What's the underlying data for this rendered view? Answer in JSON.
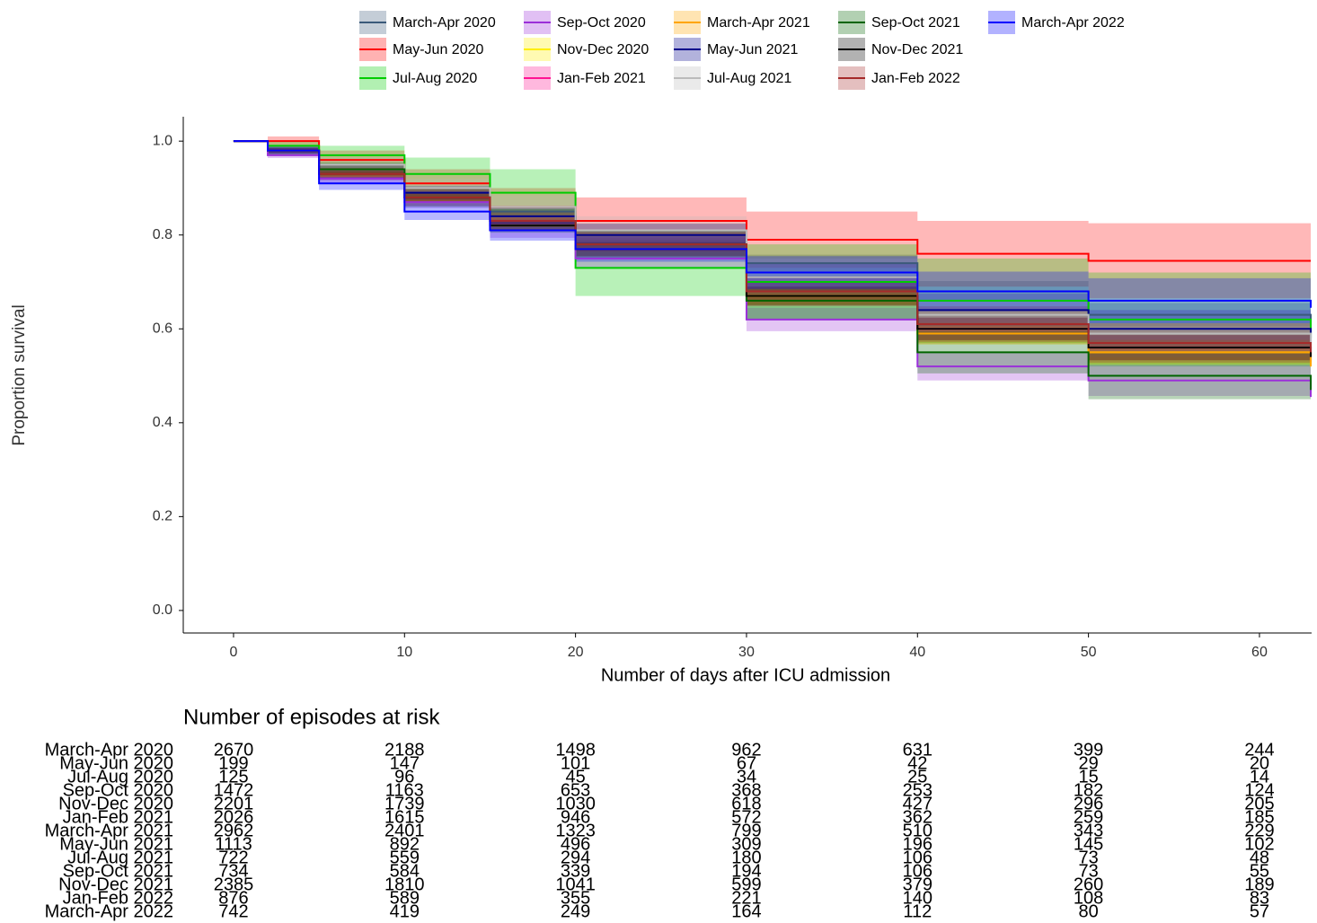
{
  "chart_data": {
    "type": "survival",
    "x_label": "Number of days after ICU admission",
    "y_label": "Proportion survival",
    "risk_table_title": "Number of episodes at risk",
    "xlim": [
      -2.94,
      63.05
    ],
    "ylim": [
      -0.048,
      1.052
    ],
    "xticks": [
      0,
      10,
      20,
      30,
      40,
      50,
      60
    ],
    "yticks": [
      {
        "value": 0,
        "label": "0.0"
      },
      0.2,
      0.4,
      0.6,
      0.8,
      {
        "value": 1,
        "label": "1.0"
      }
    ],
    "x": [
      0,
      2,
      5,
      10,
      15,
      20,
      30,
      40,
      50,
      63
    ],
    "series": [
      {
        "name": "March-Apr 2020",
        "color": "#3b5a7a",
        "values": [
          1,
          0.98,
          0.94,
          0.89,
          0.85,
          0.81,
          0.74,
          0.68,
          0.63,
          0.59
        ],
        "error": [
          0,
          0.005,
          0.008,
          0.01,
          0.012,
          0.014,
          0.018,
          0.022,
          0.025,
          0.03
        ],
        "at_risk": [
          2670,
          2188,
          1498,
          962,
          631,
          399,
          244
        ]
      },
      {
        "name": "May-Jun 2020",
        "color": "#ff0000",
        "values": [
          1,
          1,
          0.96,
          0.91,
          0.86,
          0.83,
          0.79,
          0.76,
          0.745,
          0.745
        ],
        "error": [
          0,
          0.01,
          0.02,
          0.03,
          0.04,
          0.05,
          0.06,
          0.07,
          0.08,
          0.085
        ],
        "at_risk": [
          199,
          147,
          101,
          67,
          42,
          29,
          20
        ]
      },
      {
        "name": "Jul-Aug 2020",
        "color": "#00cc00",
        "values": [
          1,
          0.99,
          0.97,
          0.93,
          0.89,
          0.73,
          0.7,
          0.66,
          0.62,
          0.58
        ],
        "error": [
          0,
          0.01,
          0.02,
          0.035,
          0.05,
          0.06,
          0.08,
          0.09,
          0.1,
          0.11
        ],
        "at_risk": [
          125,
          96,
          45,
          34,
          25,
          15,
          14
        ]
      },
      {
        "name": "Sep-Oct 2020",
        "color": "#9b30d9",
        "values": [
          1,
          0.97,
          0.92,
          0.87,
          0.81,
          0.75,
          0.62,
          0.52,
          0.49,
          0.455
        ],
        "error": [
          0,
          0.006,
          0.01,
          0.013,
          0.016,
          0.02,
          0.025,
          0.03,
          0.033,
          0.035
        ],
        "at_risk": [
          1472,
          1163,
          653,
          368,
          253,
          182,
          124
        ]
      },
      {
        "name": "Nov-Dec 2020",
        "color": "#ffee00",
        "values": [
          1,
          0.98,
          0.93,
          0.88,
          0.82,
          0.77,
          0.67,
          0.59,
          0.55,
          0.52
        ],
        "error": [
          0,
          0.005,
          0.008,
          0.01,
          0.012,
          0.015,
          0.02,
          0.024,
          0.027,
          0.03
        ],
        "at_risk": [
          2201,
          1739,
          1030,
          618,
          427,
          296,
          205
        ]
      },
      {
        "name": "Jan-Feb 2021",
        "color": "#ff1493",
        "values": [
          1,
          0.98,
          0.93,
          0.88,
          0.83,
          0.78,
          0.68,
          0.6,
          0.56,
          0.53
        ],
        "error": [
          0,
          0.005,
          0.008,
          0.01,
          0.012,
          0.015,
          0.02,
          0.024,
          0.027,
          0.03
        ],
        "at_risk": [
          2026,
          1615,
          946,
          572,
          362,
          259,
          185
        ]
      },
      {
        "name": "March-Apr 2021",
        "color": "#ffa500",
        "values": [
          1,
          0.98,
          0.93,
          0.88,
          0.83,
          0.78,
          0.67,
          0.59,
          0.55,
          0.52
        ],
        "error": [
          0,
          0.004,
          0.007,
          0.009,
          0.011,
          0.014,
          0.018,
          0.022,
          0.025,
          0.028
        ],
        "at_risk": [
          2962,
          2401,
          1323,
          799,
          510,
          343,
          229
        ]
      },
      {
        "name": "May-Jun 2021",
        "color": "#00008b",
        "values": [
          1,
          0.98,
          0.94,
          0.89,
          0.84,
          0.8,
          0.71,
          0.64,
          0.6,
          0.57
        ],
        "error": [
          0,
          0.007,
          0.012,
          0.015,
          0.02,
          0.024,
          0.03,
          0.035,
          0.04,
          0.045
        ],
        "at_risk": [
          1113,
          892,
          496,
          309,
          196,
          145,
          102
        ]
      },
      {
        "name": "Jul-Aug 2021",
        "color": "#bbbbbb",
        "values": [
          1,
          0.98,
          0.95,
          0.9,
          0.86,
          0.81,
          0.71,
          0.63,
          0.59,
          0.56
        ],
        "error": [
          0,
          0.008,
          0.015,
          0.02,
          0.025,
          0.03,
          0.04,
          0.045,
          0.05,
          0.055
        ],
        "at_risk": [
          722,
          559,
          294,
          180,
          106,
          73,
          48
        ]
      },
      {
        "name": "Sep-Oct 2021",
        "color": "#006400",
        "values": [
          1,
          0.98,
          0.94,
          0.88,
          0.83,
          0.78,
          0.66,
          0.55,
          0.5,
          0.47
        ],
        "error": [
          0,
          0.008,
          0.015,
          0.02,
          0.025,
          0.03,
          0.04,
          0.045,
          0.05,
          0.055
        ],
        "at_risk": [
          734,
          584,
          339,
          194,
          106,
          73,
          55
        ]
      },
      {
        "name": "Nov-Dec 2021",
        "color": "#000000",
        "values": [
          1,
          0.98,
          0.93,
          0.88,
          0.82,
          0.77,
          0.67,
          0.6,
          0.56,
          0.54
        ],
        "error": [
          0,
          0.005,
          0.008,
          0.01,
          0.012,
          0.015,
          0.02,
          0.024,
          0.027,
          0.03
        ],
        "at_risk": [
          2385,
          1810,
          1041,
          599,
          379,
          260,
          189
        ]
      },
      {
        "name": "Jan-Feb 2022",
        "color": "#a52a2a",
        "values": [
          1,
          0.98,
          0.93,
          0.88,
          0.83,
          0.78,
          0.68,
          0.61,
          0.57,
          0.55
        ],
        "error": [
          0,
          0.008,
          0.013,
          0.018,
          0.022,
          0.026,
          0.032,
          0.038,
          0.042,
          0.046
        ],
        "at_risk": [
          876,
          589,
          355,
          221,
          140,
          108,
          83
        ]
      },
      {
        "name": "March-Apr 2022",
        "color": "#0000ff",
        "values": [
          1,
          0.98,
          0.91,
          0.85,
          0.81,
          0.77,
          0.72,
          0.68,
          0.66,
          0.645
        ],
        "error": [
          0,
          0.008,
          0.014,
          0.018,
          0.022,
          0.027,
          0.035,
          0.042,
          0.048,
          0.055
        ],
        "at_risk": [
          742,
          419,
          249,
          164,
          112,
          80,
          57
        ]
      }
    ]
  }
}
